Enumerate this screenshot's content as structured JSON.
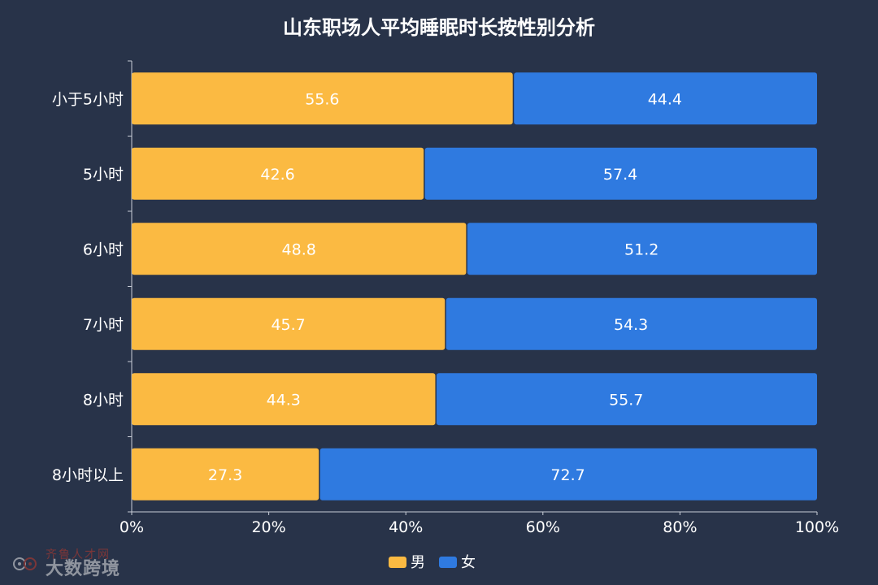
{
  "chart_data": {
    "type": "bar",
    "orientation": "horizontal",
    "stacked": true,
    "normalized": true,
    "title": "山东职场人平均睡眠时长按性别分析",
    "categories": [
      "小于5小时",
      "5小时",
      "6小时",
      "7小时",
      "8小时",
      "8小时以上"
    ],
    "series": [
      {
        "name": "男",
        "color": "#FBBA42",
        "values": [
          55.6,
          42.6,
          48.8,
          45.7,
          44.3,
          27.3
        ]
      },
      {
        "name": "女",
        "color": "#2F7AE0",
        "values": [
          44.4,
          57.4,
          51.2,
          54.3,
          55.7,
          72.7
        ]
      }
    ],
    "x_ticks": [
      "0%",
      "20%",
      "40%",
      "60%",
      "80%",
      "100%"
    ],
    "xlim": [
      0,
      100
    ],
    "grid": false,
    "legend_position": "bottom-center"
  },
  "watermark": {
    "line1": "齐鲁人才网",
    "line2": "大数跨境"
  }
}
